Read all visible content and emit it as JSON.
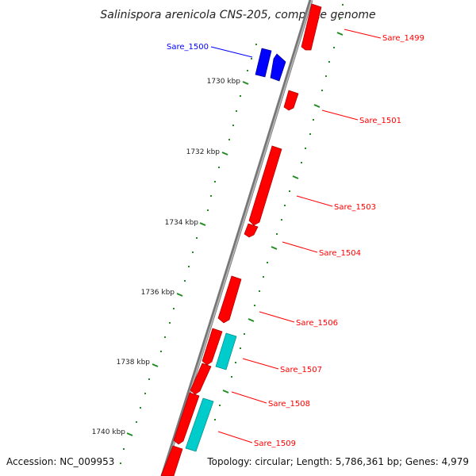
{
  "title": "Salinispora arenicola CNS-205, complete genome",
  "accession": "Accession: NC_009953",
  "topology": "Topology: circular; Length: 5,786,361 bp; Genes: 4,979",
  "colors": {
    "forward_gene": "#ff0000",
    "reverse_gene": "#0000ff",
    "cyan_gene": "#00cccc",
    "tick": "#228b22",
    "backbone": "#777777"
  },
  "tick_labels": [
    "1730 kbp",
    "1732 kbp",
    "1734 kbp",
    "1736 kbp",
    "1738 kbp",
    "1740 kbp"
  ],
  "gene_labels": [
    {
      "text": "Sare_1499",
      "color": "#ff0000"
    },
    {
      "text": "Sare_1500",
      "color": "#0000ff"
    },
    {
      "text": "Sare_1501",
      "color": "#ff0000"
    },
    {
      "text": "Sare_1503",
      "color": "#ff0000"
    },
    {
      "text": "Sare_1504",
      "color": "#ff0000"
    },
    {
      "text": "Sare_1506",
      "color": "#ff0000"
    },
    {
      "text": "Sare_1507",
      "color": "#ff0000"
    },
    {
      "text": "Sare_1508",
      "color": "#ff0000"
    },
    {
      "text": "Sare_1509",
      "color": "#ff0000"
    }
  ]
}
